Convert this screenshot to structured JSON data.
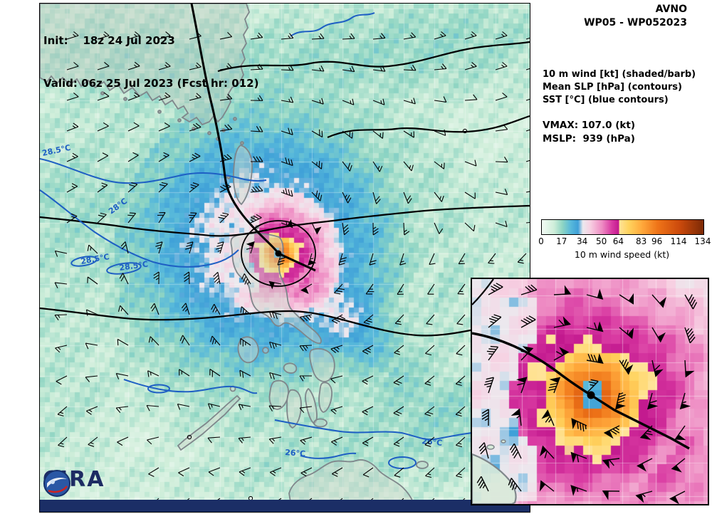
{
  "titles": {
    "init": "Init:    18z 24 Jul 2023",
    "valid": "Valid: 06z 25 Jul 2023 (Fcst hr: 012)"
  },
  "side": {
    "model": "AVNO",
    "storm_id": "WP05 - WP052023",
    "legend": [
      "10 m wind [kt] (shaded/barb)",
      "Mean SLP [hPa] (contours)",
      "SST [°C] (blue contours)"
    ],
    "vmax": "VMAX: 107.0 (kt)",
    "mslp": "MSLP:  939 (hPa)"
  },
  "colorbar": {
    "label": "10 m wind speed (kt)",
    "ticks": [
      "0",
      "17",
      "34",
      "50",
      "64",
      "83",
      "96",
      "114",
      "134"
    ],
    "tick_values": [
      0,
      17,
      34,
      50,
      64,
      83,
      96,
      114,
      134
    ],
    "max": 134,
    "stops": [
      [
        0,
        "#f2faf4"
      ],
      [
        10,
        "#cfeeda"
      ],
      [
        17,
        "#8fd5c3"
      ],
      [
        24,
        "#58b9da"
      ],
      [
        30,
        "#3fa0d8"
      ],
      [
        34,
        "#ece9ee"
      ],
      [
        40,
        "#f7d0e2"
      ],
      [
        50,
        "#ee8bc3"
      ],
      [
        58,
        "#d93aa2"
      ],
      [
        63.9,
        "#c2188e"
      ],
      [
        64,
        "#ffe49a"
      ],
      [
        72,
        "#ffd35e"
      ],
      [
        83,
        "#ffa93c"
      ],
      [
        96,
        "#ef7418"
      ],
      [
        114,
        "#cc4a0c"
      ],
      [
        134,
        "#7c2a06"
      ]
    ]
  },
  "map": {
    "logo_text": "CIRA",
    "sst_labels": [
      {
        "text": "28.5°C"
      },
      {
        "text": "28°C"
      },
      {
        "text": "28.5°C"
      },
      {
        "text": "28.5°C"
      },
      {
        "text": "26°C"
      },
      {
        "text": "26°C"
      }
    ],
    "colors": {
      "sst": "#1e5fc4",
      "slp": "#000000",
      "track": "#000000",
      "coast": "#7f868b",
      "footer_bar": "#1b2e66",
      "logo_blue": "#1d2b63"
    }
  }
}
